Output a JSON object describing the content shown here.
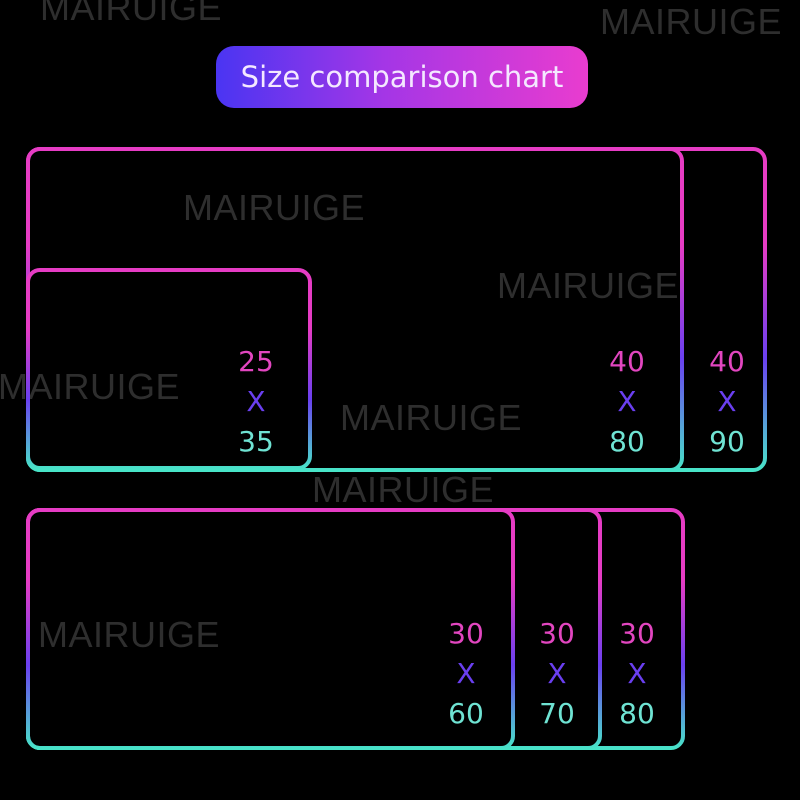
{
  "watermark": "MAIRUIGE",
  "title": "Size comparison chart",
  "colors": {
    "top": "#e63cc4",
    "middle": "#6a40f0",
    "bottom": "#48e6c8",
    "title_start": "#4a35f2",
    "title_end": "#e93ccf"
  },
  "groups": [
    {
      "sizes": [
        {
          "width": 25,
          "x": "X",
          "length": 35
        },
        {
          "width": 40,
          "x": "X",
          "length": 80
        },
        {
          "width": 40,
          "x": "X",
          "length": 90
        }
      ]
    },
    {
      "sizes": [
        {
          "width": 30,
          "x": "X",
          "length": 60
        },
        {
          "width": 30,
          "x": "X",
          "length": 70
        },
        {
          "width": 30,
          "x": "X",
          "length": 80
        }
      ]
    }
  ]
}
